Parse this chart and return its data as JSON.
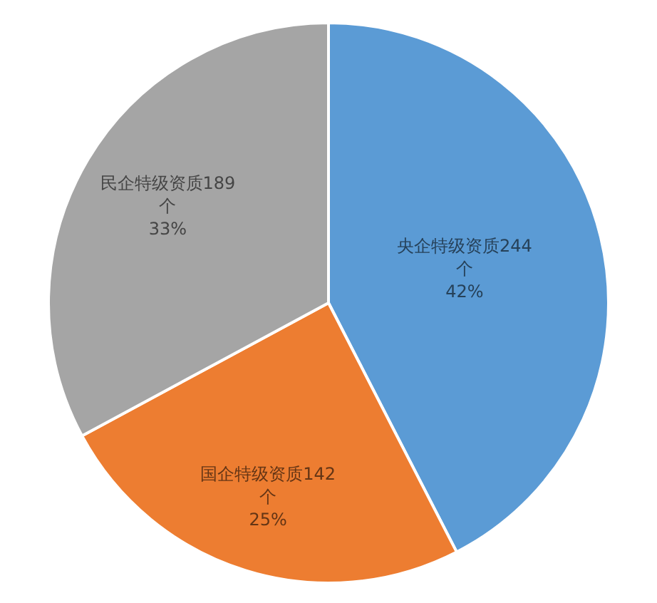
{
  "chart_data": {
    "type": "pie",
    "categories": [
      "央企特级资质",
      "国企特级资质",
      "民企特级资质"
    ],
    "values": [
      244,
      142,
      189
    ],
    "colors": [
      "#5b9bd5",
      "#ed7d31",
      "#a5a5a5"
    ],
    "value_labels": [
      "244个 42%",
      "142个 25%",
      "189个 33%"
    ]
  }
}
